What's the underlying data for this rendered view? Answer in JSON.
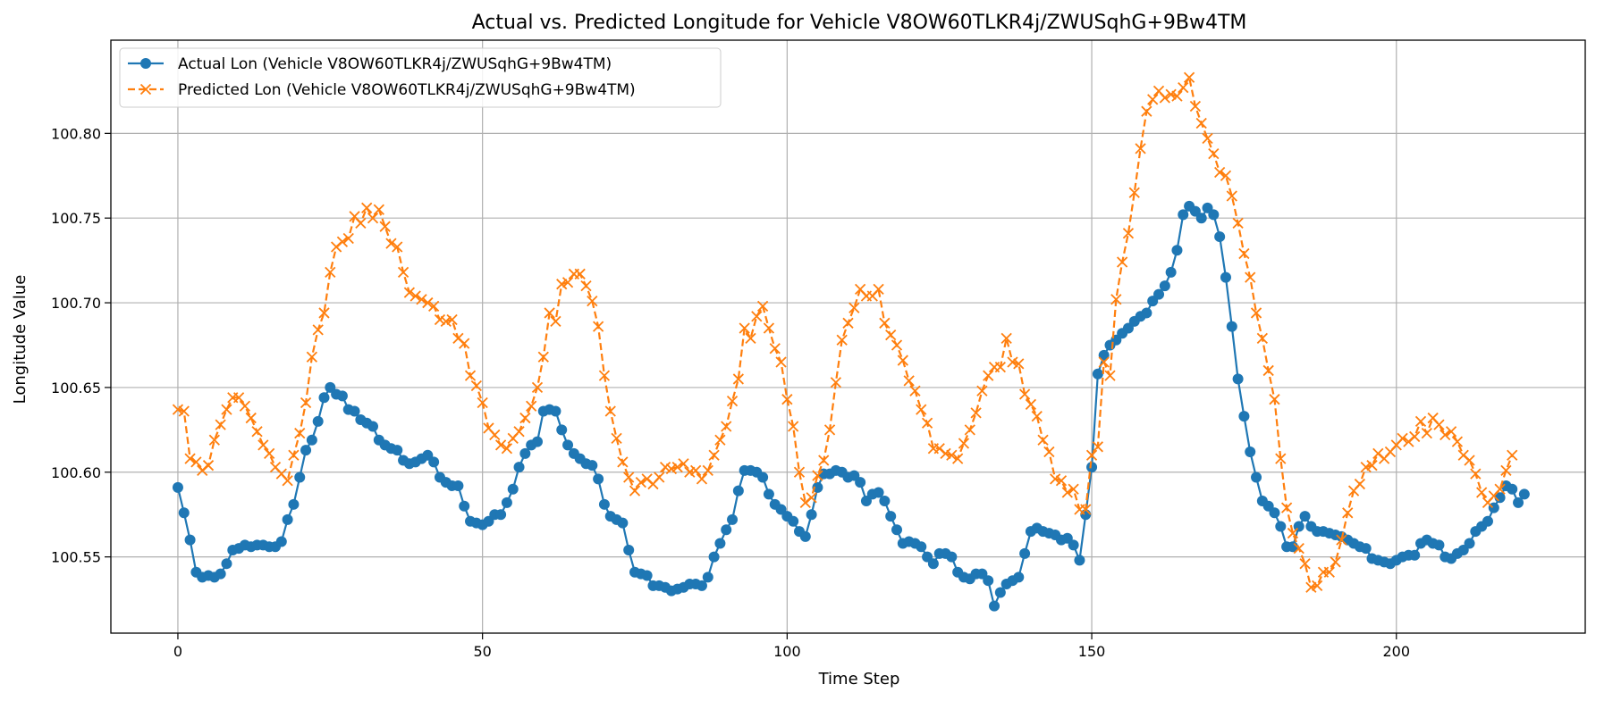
{
  "chart_data": {
    "type": "line",
    "title": "Actual vs. Predicted Longitude for Vehicle V8OW60TLKR4j/ZWUSqhG+9Bw4TM",
    "xlabel": "Time Step",
    "ylabel": "Longitude Value",
    "xlim": [
      -11,
      231
    ],
    "ylim": [
      100.505,
      100.855
    ],
    "xticks": [
      0,
      50,
      100,
      150,
      200
    ],
    "xtick_labels": [
      "0",
      "50",
      "100",
      "150",
      "200"
    ],
    "yticks": [
      100.55,
      100.6,
      100.65,
      100.7,
      100.75,
      100.8
    ],
    "ytick_labels": [
      "100.55",
      "100.60",
      "100.65",
      "100.70",
      "100.75",
      "100.80"
    ],
    "grid": true,
    "legend_position": "top-left",
    "series": [
      {
        "name": "Actual Lon (Vehicle V8OW60TLKR4j/ZWUSqhG+9Bw4TM)",
        "color": "#1f77b4",
        "linestyle": "solid",
        "marker": "circle",
        "values": [
          100.591,
          100.576,
          100.56,
          100.541,
          100.538,
          100.539,
          100.538,
          100.54,
          100.546,
          100.554,
          100.555,
          100.557,
          100.556,
          100.557,
          100.557,
          100.556,
          100.556,
          100.559,
          100.572,
          100.581,
          100.597,
          100.613,
          100.619,
          100.63,
          100.644,
          100.65,
          100.646,
          100.645,
          100.637,
          100.636,
          100.631,
          100.629,
          100.627,
          100.619,
          100.616,
          100.614,
          100.613,
          100.607,
          100.605,
          100.606,
          100.608,
          100.61,
          100.606,
          100.597,
          100.594,
          100.592,
          100.592,
          100.58,
          100.571,
          100.57,
          100.569,
          100.571,
          100.575,
          100.575,
          100.582,
          100.59,
          100.603,
          100.611,
          100.616,
          100.618,
          100.636,
          100.637,
          100.636,
          100.625,
          100.616,
          100.611,
          100.608,
          100.605,
          100.604,
          100.596,
          100.581,
          100.574,
          100.572,
          100.57,
          100.554,
          100.541,
          100.54,
          100.539,
          100.533,
          100.533,
          100.532,
          100.53,
          100.531,
          100.532,
          100.534,
          100.534,
          100.533,
          100.538,
          100.55,
          100.558,
          100.566,
          100.572,
          100.589,
          100.601,
          100.601,
          100.6,
          100.597,
          100.587,
          100.581,
          100.578,
          100.574,
          100.571,
          100.565,
          100.562,
          100.575,
          100.591,
          100.599,
          100.599,
          100.601,
          100.6,
          100.597,
          100.598,
          100.594,
          100.583,
          100.587,
          100.588,
          100.583,
          100.574,
          100.566,
          100.558,
          100.559,
          100.558,
          100.556,
          100.55,
          100.546,
          100.552,
          100.552,
          100.55,
          100.541,
          100.538,
          100.537,
          100.54,
          100.54,
          100.536,
          100.521,
          100.529,
          100.534,
          100.536,
          100.538,
          100.552,
          100.565,
          100.567,
          100.565,
          100.564,
          100.563,
          100.56,
          100.561,
          100.557,
          100.548,
          100.575,
          100.603,
          100.658,
          100.669,
          100.675,
          100.678,
          100.682,
          100.685,
          100.689,
          100.692,
          100.694,
          100.701,
          100.705,
          100.71,
          100.718,
          100.731,
          100.752,
          100.757,
          100.754,
          100.75,
          100.756,
          100.752,
          100.739,
          100.715,
          100.686,
          100.655,
          100.633,
          100.612,
          100.597,
          100.583,
          100.58,
          100.576,
          100.568,
          100.556,
          100.556,
          100.568,
          100.574,
          100.568,
          100.565,
          100.565,
          100.564,
          100.563,
          100.562,
          100.56,
          100.558,
          100.556,
          100.555,
          100.549,
          100.548,
          100.547,
          100.546,
          100.548,
          100.55,
          100.551,
          100.551,
          100.558,
          100.56,
          100.558,
          100.557,
          100.55,
          100.549,
          100.552,
          100.554,
          100.558,
          100.565,
          100.568,
          100.571,
          100.579,
          100.585,
          100.592,
          100.59,
          100.582,
          100.587
        ]
      },
      {
        "name": "Predicted Lon (Vehicle V8OW60TLKR4j/ZWUSqhG+9Bw4TM)",
        "color": "#ff7f0e",
        "linestyle": "dashed",
        "marker": "x",
        "values": [
          100.637,
          100.636,
          100.608,
          100.606,
          100.601,
          100.604,
          100.619,
          100.628,
          100.637,
          100.644,
          100.644,
          100.639,
          100.632,
          100.624,
          100.616,
          100.611,
          100.603,
          100.599,
          100.595,
          100.61,
          100.623,
          100.641,
          100.668,
          100.684,
          100.694,
          100.718,
          100.733,
          100.736,
          100.738,
          100.751,
          100.747,
          100.756,
          100.75,
          100.755,
          100.745,
          100.735,
          100.733,
          100.718,
          100.706,
          100.704,
          100.702,
          100.7,
          100.698,
          100.69,
          100.689,
          100.69,
          100.679,
          100.676,
          100.657,
          100.651,
          100.641,
          100.626,
          100.622,
          100.616,
          100.614,
          100.62,
          100.624,
          100.632,
          100.639,
          100.65,
          100.668,
          100.694,
          100.689,
          100.711,
          100.712,
          100.717,
          100.717,
          100.71,
          100.701,
          100.686,
          100.657,
          100.636,
          100.62,
          100.606,
          100.597,
          100.589,
          100.594,
          100.596,
          100.593,
          100.597,
          100.603,
          100.602,
          100.603,
          100.605,
          100.6,
          100.601,
          100.596,
          100.601,
          100.61,
          100.619,
          100.627,
          100.642,
          100.655,
          100.685,
          100.679,
          100.692,
          100.698,
          100.685,
          100.673,
          100.665,
          100.643,
          100.627,
          100.6,
          100.582,
          100.585,
          100.598,
          100.607,
          100.625,
          100.653,
          100.678,
          100.688,
          100.697,
          100.708,
          100.704,
          100.704,
          100.708,
          100.688,
          100.681,
          100.675,
          100.666,
          100.654,
          100.648,
          100.637,
          100.629,
          100.614,
          100.614,
          100.611,
          100.61,
          100.608,
          100.617,
          100.625,
          100.635,
          100.648,
          100.657,
          100.662,
          100.662,
          100.679,
          100.665,
          100.664,
          100.646,
          100.64,
          100.633,
          100.619,
          100.612,
          100.596,
          100.595,
          100.588,
          100.59,
          100.578,
          100.578,
          100.61,
          100.615,
          100.665,
          100.657,
          100.702,
          100.724,
          100.741,
          100.765,
          100.791,
          100.813,
          100.82,
          100.825,
          100.821,
          100.823,
          100.822,
          100.827,
          100.833,
          100.816,
          100.806,
          100.797,
          100.788,
          100.777,
          100.775,
          100.763,
          100.747,
          100.729,
          100.715,
          100.694,
          100.679,
          100.66,
          100.643,
          100.608,
          100.579,
          100.564,
          100.555,
          100.546,
          100.532,
          100.533,
          100.541,
          100.541,
          100.547,
          100.56,
          100.576,
          100.589,
          100.593,
          100.603,
          100.604,
          100.611,
          100.608,
          100.612,
          100.616,
          100.62,
          100.618,
          100.621,
          100.63,
          100.623,
          100.632,
          100.628,
          100.622,
          100.624,
          100.618,
          100.61,
          100.607,
          100.599,
          100.588,
          100.582,
          100.586,
          100.59,
          100.601,
          100.61
        ]
      }
    ]
  }
}
